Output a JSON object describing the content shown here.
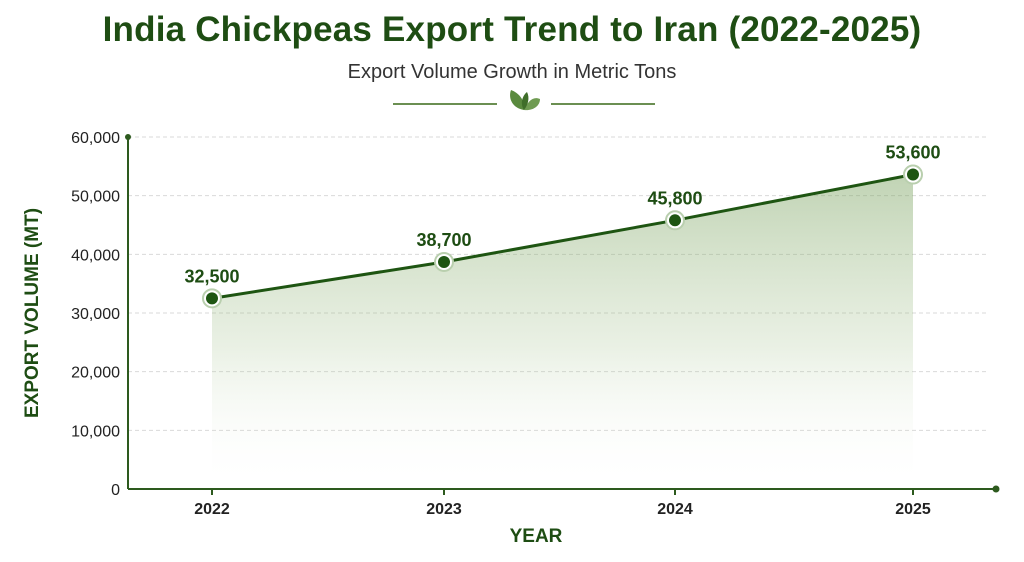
{
  "chart_data": {
    "type": "line",
    "title": "India Chickpeas Export Trend to Iran (2022-2025)",
    "subtitle": "Export Volume Growth in Metric Tons",
    "xlabel": "YEAR",
    "ylabel": "EXPORT VOLUME (MT)",
    "categories": [
      "2022",
      "2023",
      "2024",
      "2025"
    ],
    "series": [
      {
        "values": [
          32500,
          38700,
          45800,
          53600
        ]
      }
    ],
    "data_labels": [
      "32,500",
      "38,700",
      "45,800",
      "53,600"
    ],
    "ylim": [
      0,
      60000
    ],
    "yticks": [
      0,
      10000,
      20000,
      30000,
      40000,
      50000,
      60000
    ],
    "ytick_labels": [
      "0",
      "10,000",
      "20,000",
      "30,000",
      "40,000",
      "50,000",
      "60,000"
    ],
    "grid": true,
    "area_fill": true,
    "legend": "none",
    "colors": {
      "line": "#1e5512",
      "marker": "#1e5512",
      "title": "#1e4d13",
      "axis": "#2d5a1e",
      "grid": "#d9d9d9",
      "fill": "#7da463"
    }
  }
}
